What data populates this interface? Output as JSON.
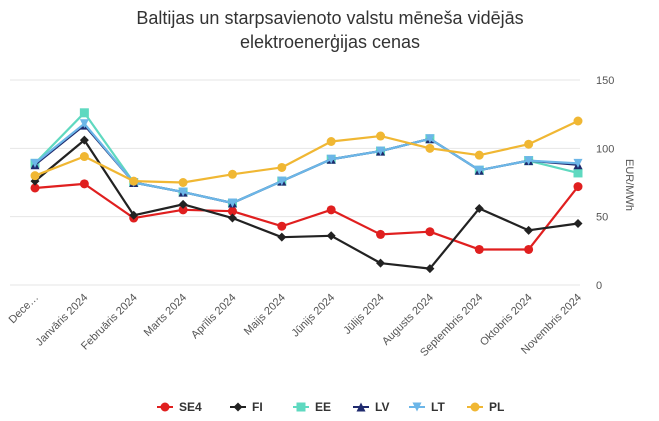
{
  "chart_data": {
    "type": "line",
    "title_lines": [
      "Baltijas un starpsavienoto valstu mēneša vidējās",
      "elektroenerģijas cenas"
    ],
    "categories": [
      "Dece…",
      "Janvāris 2024",
      "Februāris 2024",
      "Marts 2024",
      "Aprīlis 2024",
      "Maijs 2024",
      "Jūnijs 2024",
      "Jūlijs 2024",
      "Augusts 2024",
      "Septembris 2024",
      "Oktobris 2024",
      "Novembris 2024"
    ],
    "ylabel": "EUR/MWh",
    "ylim": [
      0,
      150
    ],
    "yticks": [
      "0",
      "50",
      "100",
      "150"
    ],
    "grid": true,
    "legend_position": "bottom",
    "series": [
      {
        "name": "SE4",
        "color": "#e01f1f",
        "marker": "circle",
        "values": [
          71,
          74,
          49,
          55,
          54,
          43,
          55,
          37,
          39,
          26,
          26,
          72
        ]
      },
      {
        "name": "FI",
        "color": "#222222",
        "marker": "diamond",
        "values": [
          76,
          106,
          51,
          59,
          49,
          35,
          36,
          16,
          12,
          56,
          40,
          45
        ]
      },
      {
        "name": "EE",
        "color": "#5fd9c0",
        "marker": "square",
        "values": [
          89,
          126,
          75,
          68,
          60,
          76,
          92,
          98,
          107,
          84,
          91,
          82
        ]
      },
      {
        "name": "LV",
        "color": "#1f2a6e",
        "marker": "triangle",
        "values": [
          88,
          117,
          75,
          68,
          60,
          76,
          92,
          98,
          107,
          84,
          91,
          88
        ]
      },
      {
        "name": "LT",
        "color": "#6cb6e8",
        "marker": "triangle-down",
        "values": [
          89,
          118,
          75,
          68,
          60,
          76,
          92,
          98,
          107,
          84,
          91,
          89
        ]
      },
      {
        "name": "PL",
        "color": "#f0b733",
        "marker": "circle",
        "values": [
          80,
          94,
          76,
          75,
          81,
          86,
          105,
          109,
          100,
          95,
          103,
          120
        ]
      }
    ]
  }
}
